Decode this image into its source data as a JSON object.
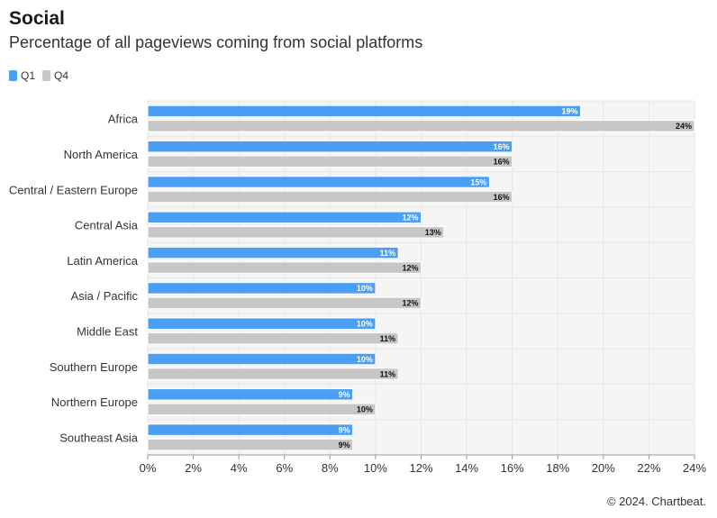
{
  "header": {
    "title": "Social",
    "subtitle": "Percentage of all pageviews coming from social platforms"
  },
  "footer": {
    "credit": "© 2024. Chartbeat."
  },
  "colors": {
    "q1": "#4a9ff5",
    "q4": "#c8c7c7",
    "grid": "#e6e6e6",
    "plot_bg": "#f5f5f5"
  },
  "chart_data": {
    "type": "bar",
    "orientation": "horizontal",
    "categories": [
      "Africa",
      "North America",
      "Central / Eastern Europe",
      "Central Asia",
      "Latin America",
      "Asia / Pacific",
      "Middle East",
      "Southern Europe",
      "Northern Europe",
      "Southeast Asia"
    ],
    "series": [
      {
        "name": "Q1",
        "values": [
          19,
          16,
          15,
          12,
          11,
          10,
          10,
          10,
          9,
          9
        ],
        "labels": [
          "19%",
          "16%",
          "15%",
          "12%",
          "11%",
          "10%",
          "10%",
          "10%",
          "9%",
          "9%"
        ]
      },
      {
        "name": "Q4",
        "values": [
          24,
          16,
          16,
          13,
          12,
          12,
          11,
          11,
          10,
          9
        ],
        "labels": [
          "24%",
          "16%",
          "16%",
          "13%",
          "12%",
          "12%",
          "11%",
          "11%",
          "10%",
          "9%"
        ]
      }
    ],
    "xlim": [
      0,
      24
    ],
    "xticks": [
      0,
      2,
      4,
      6,
      8,
      10,
      12,
      14,
      16,
      18,
      20,
      22,
      24
    ],
    "xtick_labels": [
      "0%",
      "2%",
      "4%",
      "6%",
      "8%",
      "10%",
      "12%",
      "14%",
      "16%",
      "18%",
      "20%",
      "22%",
      "24%"
    ],
    "grid": true,
    "legend": "top-left"
  }
}
